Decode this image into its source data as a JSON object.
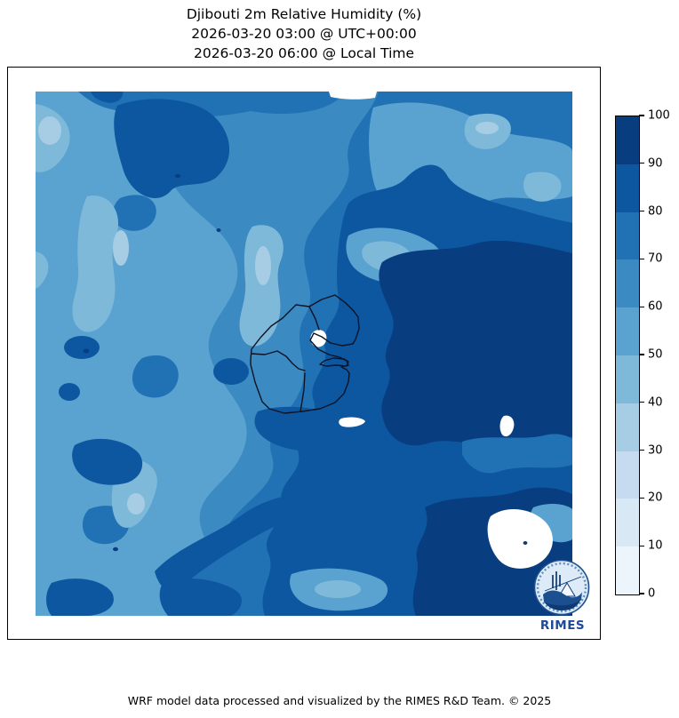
{
  "title": {
    "line1": "Djibouti 2m Relative Humidity (%)",
    "line2": "2026-03-20 03:00 @ UTC+00:00",
    "line3": "2026-03-20 06:00 @ Local Time"
  },
  "colorbar": {
    "ticks": [
      0,
      10,
      20,
      30,
      40,
      50,
      60,
      70,
      80,
      90,
      100
    ],
    "palette": [
      "#edf5fc",
      "#d9e8f5",
      "#c6dbef",
      "#a6cde4",
      "#7fb9da",
      "#5aa3d0",
      "#3b8bc2",
      "#2171b5",
      "#0d57a1",
      "#083d7f"
    ]
  },
  "logo": {
    "text": "RIMES"
  },
  "footer": {
    "text": "WRF model data processed and visualized by the RIMES R&D Team. © 2025"
  },
  "chart_data": {
    "type": "heatmap",
    "title": "Djibouti 2m Relative Humidity (%)",
    "timestamp_utc": "2026-03-20 03:00 @ UTC+00:00",
    "timestamp_local": "2026-03-20 06:00 @ Local Time",
    "variable": "2m Relative Humidity",
    "units": "%",
    "region": "Djibouti",
    "levels": [
      0,
      10,
      20,
      30,
      40,
      50,
      60,
      70,
      80,
      90,
      100
    ],
    "palette": [
      "#edf5fc",
      "#d9e8f5",
      "#c6dbef",
      "#a6cde4",
      "#7fb9da",
      "#5aa3d0",
      "#3b8bc2",
      "#2171b5",
      "#0d57a1",
      "#083d7f"
    ],
    "colorbar_position": "right",
    "legend_ticks": [
      "0",
      "10",
      "20",
      "30",
      "40",
      "50",
      "60",
      "70",
      "80",
      "90",
      "100"
    ],
    "credit": "WRF model data processed and visualized by the RIMES R&D Team. © 2025"
  }
}
